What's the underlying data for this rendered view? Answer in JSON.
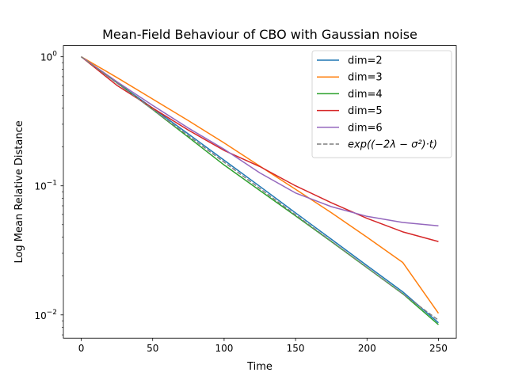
{
  "chart_data": {
    "type": "line",
    "title": "Mean-Field Behaviour of CBO with Gaussian noise",
    "xlabel": "Time",
    "ylabel": "Log Mean Relative Distance",
    "xlim": [
      -12.5,
      262.5
    ],
    "ylim": [
      0.0066,
      1.22
    ],
    "yscale": "log",
    "grid": false,
    "legend_position": "upper right",
    "x_ticks": [
      0,
      50,
      100,
      150,
      200,
      250
    ],
    "x_tick_labels": [
      "0",
      "50",
      "100",
      "150",
      "200",
      "250"
    ],
    "y_ticks": [
      0.01,
      0.1,
      1
    ],
    "y_tick_labels": [
      {
        "base": "10",
        "exp": "−2"
      },
      {
        "base": "10",
        "exp": "−1"
      },
      {
        "base": "10",
        "exp": "0"
      }
    ],
    "series": [
      {
        "name": "dim=2",
        "color": "#1f77b4",
        "dash": "solid",
        "points": [
          [
            0,
            1.0
          ],
          [
            25,
            0.63
          ],
          [
            50,
            0.4
          ],
          [
            75,
            0.252
          ],
          [
            100,
            0.158
          ],
          [
            125,
            0.099
          ],
          [
            150,
            0.0617
          ],
          [
            175,
            0.0386
          ],
          [
            200,
            0.0241
          ],
          [
            225,
            0.0151
          ],
          [
            250,
            0.0087
          ]
        ]
      },
      {
        "name": "dim=3",
        "color": "#ff7f0e",
        "dash": "solid",
        "points": [
          [
            0,
            1.0
          ],
          [
            25,
            0.69
          ],
          [
            50,
            0.47
          ],
          [
            75,
            0.32
          ],
          [
            100,
            0.215
          ],
          [
            125,
            0.142
          ],
          [
            150,
            0.094
          ],
          [
            175,
            0.062
          ],
          [
            200,
            0.04
          ],
          [
            225,
            0.0255
          ],
          [
            250,
            0.0103
          ]
        ]
      },
      {
        "name": "dim=4",
        "color": "#2ca02c",
        "dash": "solid",
        "points": [
          [
            0,
            1.0
          ],
          [
            25,
            0.63
          ],
          [
            50,
            0.39
          ],
          [
            75,
            0.238
          ],
          [
            100,
            0.145
          ],
          [
            125,
            0.092
          ],
          [
            150,
            0.0585
          ],
          [
            175,
            0.037
          ],
          [
            200,
            0.0232
          ],
          [
            225,
            0.0146
          ],
          [
            250,
            0.0084
          ]
        ]
      },
      {
        "name": "dim=5",
        "color": "#d62728",
        "dash": "solid",
        "points": [
          [
            0,
            1.0
          ],
          [
            25,
            0.6
          ],
          [
            50,
            0.4
          ],
          [
            75,
            0.27
          ],
          [
            100,
            0.188
          ],
          [
            125,
            0.141
          ],
          [
            150,
            0.1
          ],
          [
            175,
            0.074
          ],
          [
            200,
            0.056
          ],
          [
            225,
            0.044
          ],
          [
            250,
            0.037
          ]
        ]
      },
      {
        "name": "dim=6",
        "color": "#9467bd",
        "dash": "solid",
        "points": [
          [
            0,
            1.0
          ],
          [
            25,
            0.64
          ],
          [
            50,
            0.42
          ],
          [
            75,
            0.28
          ],
          [
            100,
            0.192
          ],
          [
            125,
            0.126
          ],
          [
            150,
            0.088
          ],
          [
            175,
            0.069
          ],
          [
            200,
            0.058
          ],
          [
            225,
            0.052
          ],
          [
            250,
            0.049
          ]
        ]
      },
      {
        "name": "exp((−2λ − σ²)·t)",
        "color": "#7f7f7f",
        "dash": "dashed",
        "points": [
          [
            0,
            1.0
          ],
          [
            250,
            0.0091
          ]
        ]
      }
    ]
  }
}
